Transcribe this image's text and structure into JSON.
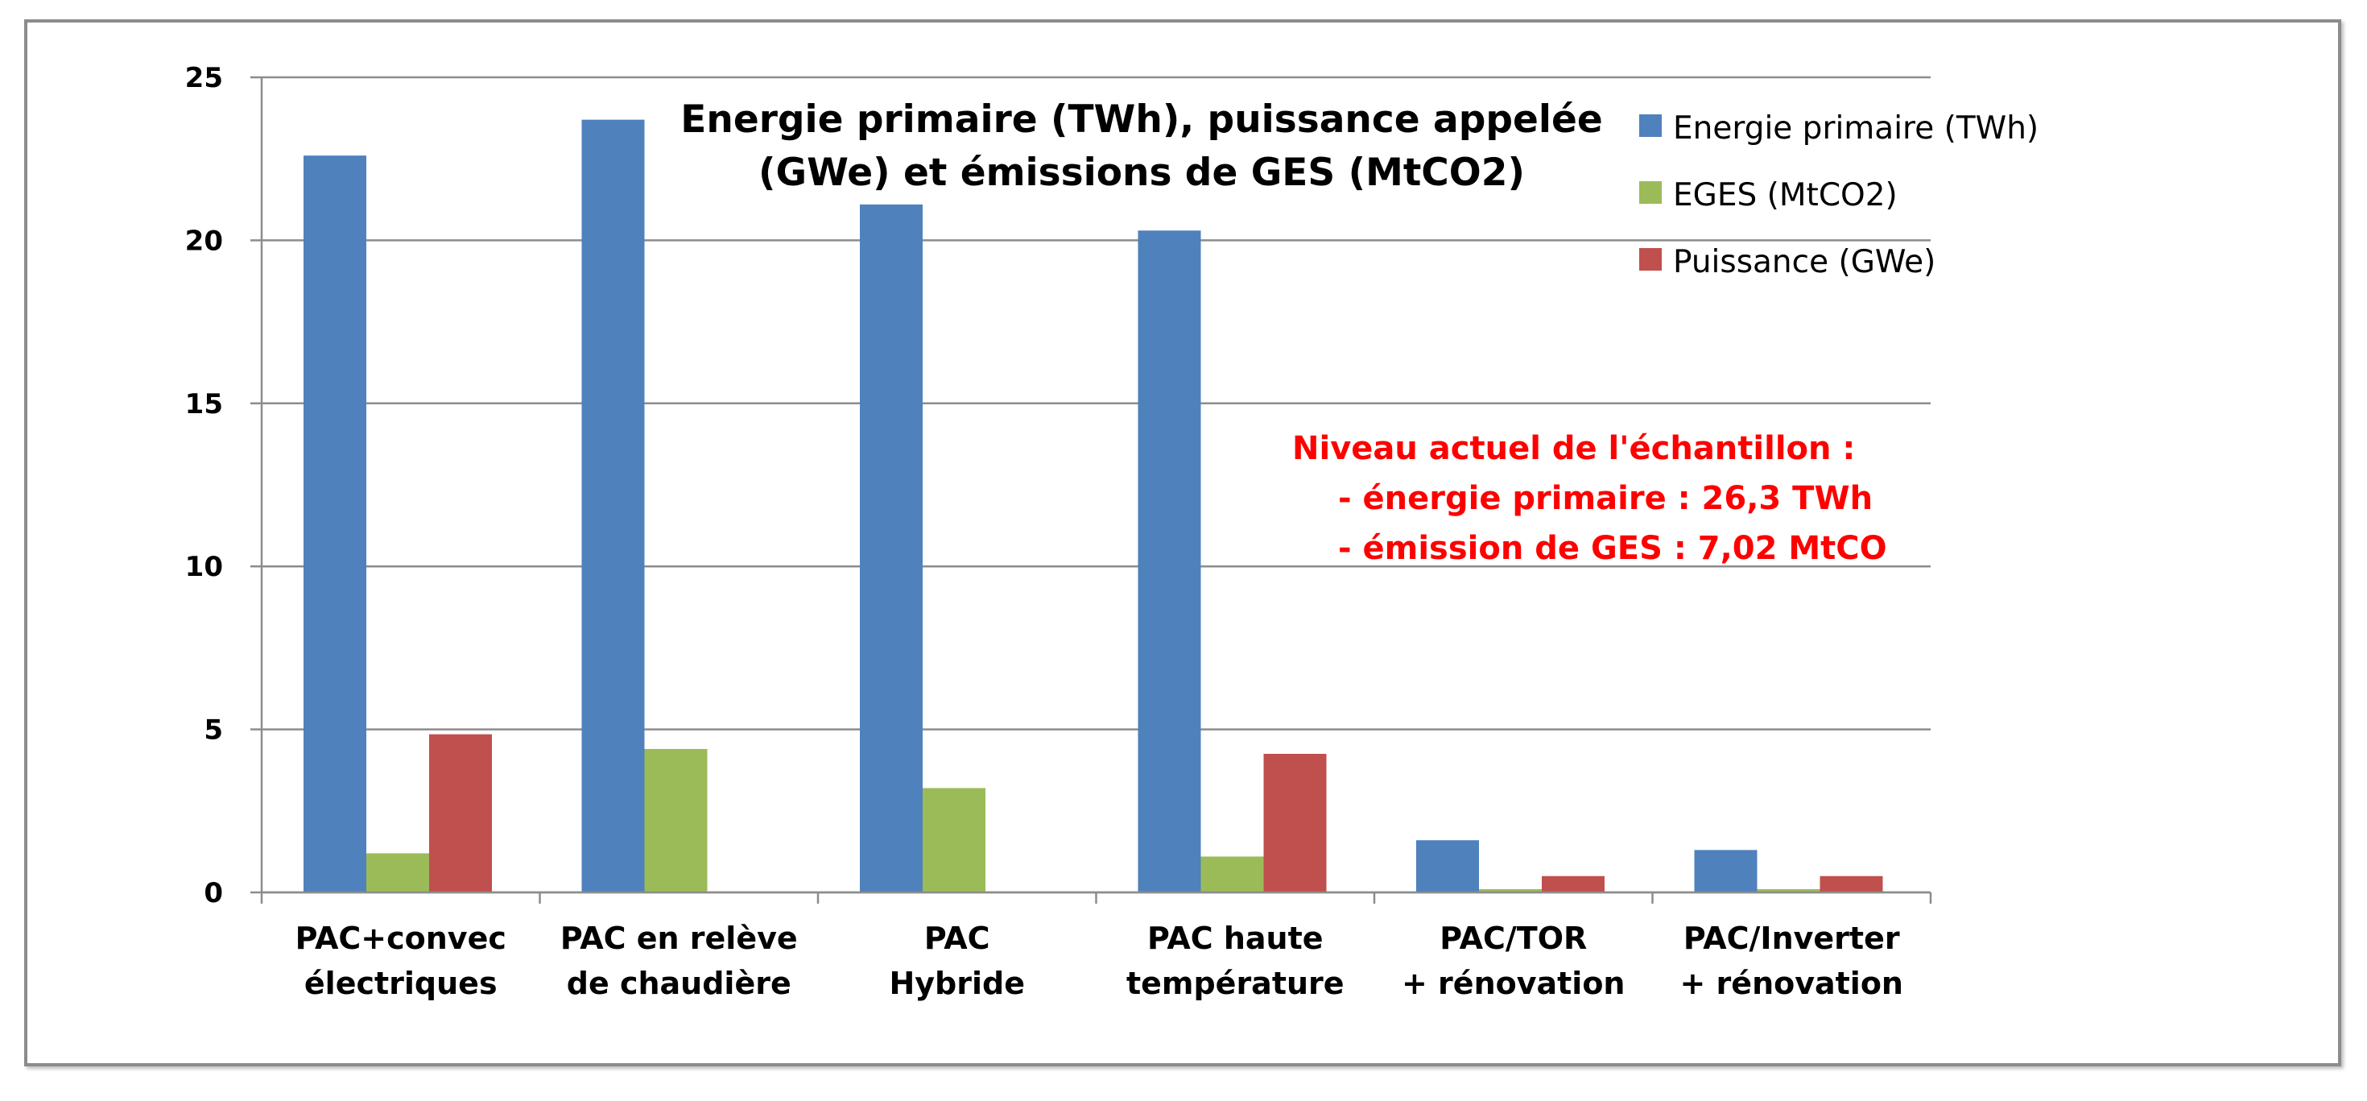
{
  "chart_data": {
    "type": "bar",
    "title": [
      "Energie primaire (TWh), puissance appelée",
      "(GWe) et émissions de GES (MtCO2)"
    ],
    "categories": [
      [
        "PAC+convec",
        "électriques"
      ],
      [
        "PAC en relève",
        "de chaudière"
      ],
      [
        "PAC",
        "Hybride"
      ],
      [
        "PAC haute",
        "température"
      ],
      [
        "PAC/TOR",
        "+ rénovation"
      ],
      [
        "PAC/Inverter",
        "+ rénovation"
      ]
    ],
    "series": [
      {
        "name": "Energie primaire (TWh)",
        "color": "#4f81bd",
        "values": [
          22.6,
          23.7,
          21.1,
          20.3,
          1.6,
          1.3
        ]
      },
      {
        "name": "EGES (MtCO2)",
        "color": "#9bbb59",
        "values": [
          1.2,
          4.4,
          3.2,
          1.1,
          0.1,
          0.1
        ]
      },
      {
        "name": "Puissance (GWe)",
        "color": "#c0504d",
        "values": [
          4.85,
          0,
          0,
          4.25,
          0.5,
          0.5
        ]
      }
    ],
    "ylim": [
      0,
      25
    ],
    "yticks": [
      0,
      5,
      10,
      15,
      20,
      25
    ],
    "grid": true,
    "legend_position": "top-right",
    "annotation": {
      "color": "#ff0000",
      "lines": [
        "Niveau actuel de l'échantillon :",
        "- énergie primaire  : 26,3 TWh",
        "- émission de GES : 7,02 MtCO"
      ]
    }
  }
}
